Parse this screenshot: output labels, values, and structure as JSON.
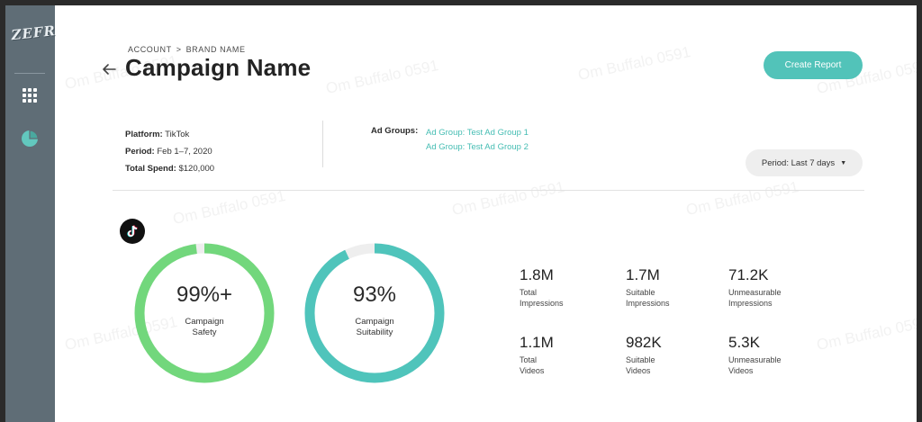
{
  "sidebar": {
    "logo_text": "ZEFR",
    "items": [
      {
        "icon": "apps-grid-icon"
      },
      {
        "icon": "pie-chart-icon",
        "active": true
      }
    ]
  },
  "watermark_text": "Om Buffalo 0591",
  "breadcrumb": {
    "account": "ACCOUNT",
    "separator": ">",
    "brand": "BRAND NAME"
  },
  "page_title": "Campaign Name",
  "create_report_label": "Create Report",
  "meta": {
    "platform_label": "Platform:",
    "platform_value": "TikTok",
    "period_label": "Period:",
    "period_value": "Feb 1–7, 2020",
    "spend_label": "Total Spend:",
    "spend_value": "$120,000"
  },
  "ad_groups": {
    "label": "Ad Groups:",
    "items": [
      "Ad Group: Test Ad Group 1",
      "Ad Group: Test Ad Group 2"
    ]
  },
  "period_dropdown": {
    "label": "Period: Last 7 days"
  },
  "platform_icon": "tiktok-icon",
  "rings": [
    {
      "value_text": "99%+",
      "label_line1": "Campaign",
      "label_line2": "Safety",
      "fill_fraction": 0.98,
      "color": "#72d77c"
    },
    {
      "value_text": "93%",
      "label_line1": "Campaign",
      "label_line2": "Suitability",
      "fill_fraction": 0.93,
      "color": "#4fc4bb"
    }
  ],
  "stats": [
    {
      "value": "1.8M",
      "line1": "Total",
      "line2": "Impressions"
    },
    {
      "value": "1.7M",
      "line1": "Suitable",
      "line2": "Impressions"
    },
    {
      "value": "71.2K",
      "line1": "Unmeasurable",
      "line2": "Impressions"
    },
    {
      "value": "1.1M",
      "line1": "Total",
      "line2": "Videos"
    },
    {
      "value": "982K",
      "line1": "Suitable",
      "line2": "Videos"
    },
    {
      "value": "5.3K",
      "line1": "Unmeasurable",
      "line2": "Videos"
    }
  ],
  "colors": {
    "accent": "#52c3b9",
    "link": "#45bdb3",
    "safety": "#72d77c",
    "suitability": "#4fc4bb",
    "sidebar": "#5f6d76",
    "ring_track": "#eeeeee"
  }
}
